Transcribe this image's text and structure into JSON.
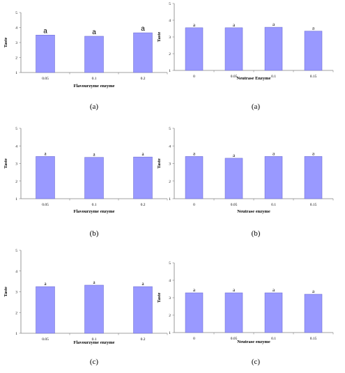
{
  "colors": {
    "bar": "#9999ff",
    "bar_edge": "#6666cc",
    "axis": "#808080"
  },
  "chart_data": [
    {
      "type": "bar",
      "caption": "(a)",
      "title": "",
      "xlabel": "Flavourzyme enzyme",
      "ylabel": "Taste",
      "categories": [
        "0.05",
        "0.1",
        "0.2"
      ],
      "values": [
        3.5,
        3.42,
        3.65
      ],
      "data_labels": [
        "a",
        "a",
        "a"
      ],
      "yticks": [
        "1",
        "2",
        "3",
        "4",
        "5"
      ],
      "ylim": [
        1,
        5
      ],
      "grid": false
    },
    {
      "type": "bar",
      "caption": "(a)",
      "title": "",
      "xlabel": "Neutrase Enzyme",
      "ylabel": "Taste",
      "categories": [
        "0",
        "0.05",
        "0.1",
        "0.15"
      ],
      "values": [
        3.55,
        3.55,
        3.58,
        3.35
      ],
      "data_labels": [
        "a",
        "a",
        "a",
        "a"
      ],
      "yticks": [
        "1",
        "2",
        "3",
        "4",
        "5"
      ],
      "ylim": [
        1,
        5
      ],
      "grid": false
    },
    {
      "type": "bar",
      "caption": "(b)",
      "title": "",
      "xlabel": "Flavourzyme enzyme",
      "ylabel": "Taste",
      "categories": [
        "0.05",
        "0.1",
        "0.2"
      ],
      "values": [
        3.4,
        3.35,
        3.37
      ],
      "data_labels": [
        "a",
        "a",
        "a"
      ],
      "yticks": [
        "1",
        "2",
        "3",
        "4",
        "5"
      ],
      "ylim": [
        1,
        5
      ],
      "grid": false
    },
    {
      "type": "bar",
      "caption": "(b)",
      "title": "",
      "xlabel": "Neutrase enzyme",
      "ylabel": "Taste",
      "categories": [
        "0",
        "0.05",
        "0.1",
        "0.15"
      ],
      "values": [
        3.4,
        3.3,
        3.4,
        3.4
      ],
      "data_labels": [
        "a",
        "a",
        "a",
        "a"
      ],
      "yticks": [
        "1",
        "2",
        "3",
        "4",
        "5"
      ],
      "ylim": [
        1,
        5
      ],
      "grid": false
    },
    {
      "type": "bar",
      "caption": "(c)",
      "title": "",
      "xlabel": "Flavourzyme enzyme",
      "ylabel": "Taste",
      "categories": [
        "0.05",
        "0.1",
        "0.2"
      ],
      "values": [
        3.25,
        3.32,
        3.25
      ],
      "data_labels": [
        "a",
        "a",
        "a"
      ],
      "yticks": [
        "1",
        "2",
        "3",
        "4",
        "5"
      ],
      "ylim": [
        1,
        5
      ],
      "grid": false
    },
    {
      "type": "bar",
      "caption": "(c)",
      "title": "",
      "xlabel": "Neutrase enzyme",
      "ylabel": "Taste",
      "categories": [
        "0",
        "0.05",
        "0.1",
        "0.15"
      ],
      "values": [
        3.28,
        3.28,
        3.28,
        3.2
      ],
      "data_labels": [
        "a",
        "a",
        "a",
        "a"
      ],
      "yticks": [
        "1",
        "2",
        "3",
        "4",
        "5"
      ],
      "ylim": [
        1,
        5
      ],
      "grid": false
    }
  ]
}
